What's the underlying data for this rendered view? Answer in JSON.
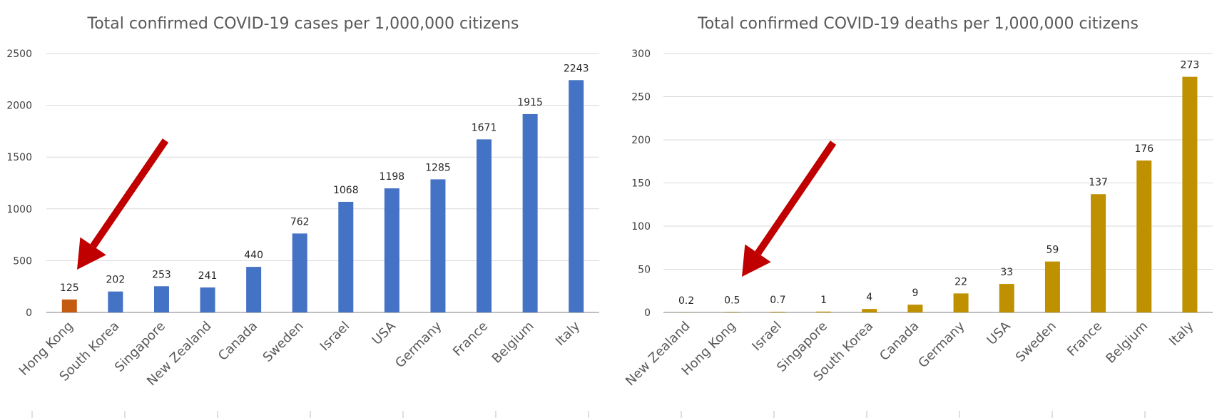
{
  "chart_data": [
    {
      "type": "bar",
      "title": "Total confirmed COVID-19 cases per 1,000,000 citizens",
      "xlabel": "",
      "ylabel": "",
      "ylim": [
        0,
        2500
      ],
      "yticks": [
        "0",
        "500",
        "1000",
        "1500",
        "2000",
        "2500"
      ],
      "grid": true,
      "categories": [
        "Hong Kong",
        "South Korea",
        "Singapore",
        "New Zealand",
        "Canada",
        "Sweden",
        "Israel",
        "USA",
        "Germany",
        "France",
        "Belgium",
        "Italy"
      ],
      "values": [
        125,
        202,
        253,
        241,
        440,
        762,
        1068,
        1198,
        1285,
        1671,
        1915,
        2243
      ],
      "labels": [
        "125",
        "202",
        "253",
        "241",
        "440",
        "762",
        "1068",
        "1198",
        "1285",
        "1671",
        "1915",
        "2243"
      ],
      "bar_color": "#4472c4",
      "highlight": {
        "category": "Hong Kong",
        "color": "#c55a11"
      },
      "annotation": {
        "type": "arrow",
        "points_to": "Hong Kong",
        "color": "#c00000"
      }
    },
    {
      "type": "bar",
      "title": "Total confirmed COVID-19 deaths per 1,000,000 citizens",
      "xlabel": "",
      "ylabel": "",
      "ylim": [
        0,
        300
      ],
      "yticks": [
        "0",
        "50",
        "100",
        "150",
        "200",
        "250",
        "300"
      ],
      "grid": true,
      "categories": [
        "New Zealand",
        "Hong Kong",
        "Israel",
        "Singapore",
        "South Korea",
        "Canada",
        "Germany",
        "USA",
        "Sweden",
        "France",
        "Belgium",
        "Italy"
      ],
      "values": [
        0.2,
        0.5,
        0.7,
        1,
        4,
        9,
        22,
        33,
        59,
        137,
        176,
        273
      ],
      "labels": [
        "0.2",
        "0.5",
        "0.7",
        "1",
        "4",
        "9",
        "22",
        "33",
        "59",
        "137",
        "176",
        "273"
      ],
      "bar_color": "#bf9000",
      "highlight": {
        "category": "Hong Kong",
        "color": "#bf9000"
      },
      "annotation": {
        "type": "arrow",
        "points_to": "Hong Kong",
        "color": "#c00000"
      }
    }
  ]
}
